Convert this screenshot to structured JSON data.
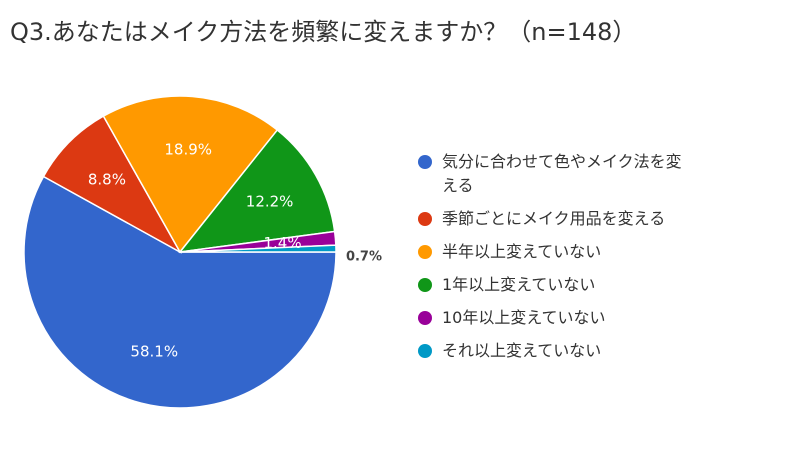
{
  "chart_data": {
    "type": "pie",
    "title": "Q3.あなたはメイク方法を頻繁に変えますか？（n=148）",
    "legend_position": "right",
    "slices": [
      {
        "label": "気分に合わせて色やメイク法を変える",
        "legend_lines": [
          "気分に合わせて色やメイク法を変",
          "える"
        ],
        "value": 58.1,
        "display": "58.1%",
        "color": "#3366cc"
      },
      {
        "label": "季節ごとにメイク用品を変える",
        "legend_lines": [
          "季節ごとにメイク用品を変える"
        ],
        "value": 8.8,
        "display": "8.8%",
        "color": "#dc3912"
      },
      {
        "label": "半年以上変えていない",
        "legend_lines": [
          "半年以上変えていない"
        ],
        "value": 18.9,
        "display": "18.9%",
        "color": "#ff9900"
      },
      {
        "label": "1年以上変えていない",
        "legend_lines": [
          "1年以上変えていない"
        ],
        "value": 12.2,
        "display": "12.2%",
        "color": "#109618"
      },
      {
        "label": "10年以上変えていない",
        "legend_lines": [
          "10年以上変えていない"
        ],
        "value": 1.4,
        "display": "1.4%",
        "color": "#990099"
      },
      {
        "label": "それ以上変えていない",
        "legend_lines": [
          "それ以上変えていない"
        ],
        "value": 0.7,
        "display": "0.7%",
        "color": "#0099c6"
      }
    ]
  }
}
